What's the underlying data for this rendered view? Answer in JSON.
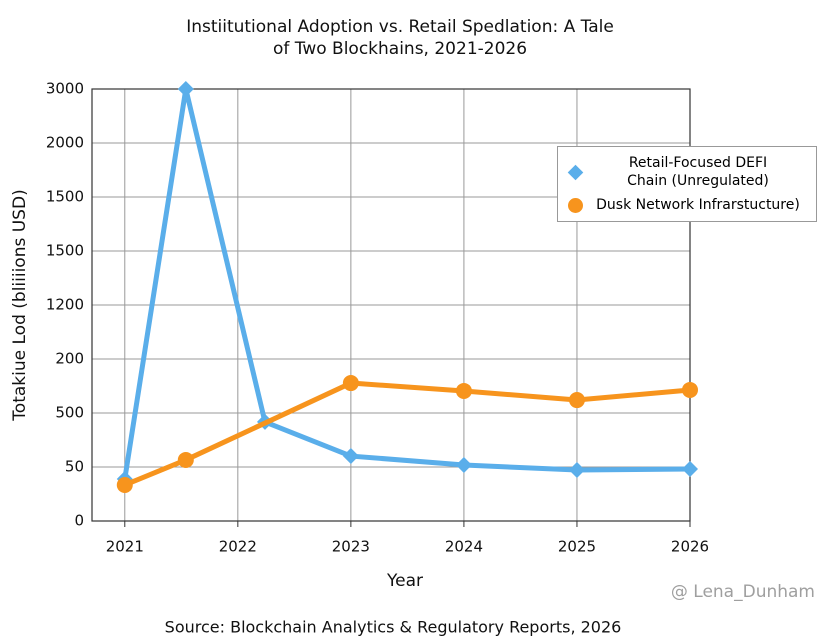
{
  "chart_data": {
    "type": "line",
    "title": [
      "Instiitutional Adoption vs. Retail Spedlation: A Tale",
      "of Two Blockhains, 2021-2026"
    ],
    "x_label": "Year",
    "y_label": "Totakiue Lod  (bliiiions USD)",
    "source": "Source: Blockchain Analytics & Regulatory Reports, 2026",
    "watermark": "@ Lena_Dunham",
    "xlim": [
      2020.71,
      2026
    ],
    "xticks": [
      2021,
      2022,
      2023,
      2024,
      2025,
      2026
    ],
    "ylim": [
      0,
      3000
    ],
    "yticks": [
      0,
      {
        "value": 375,
        "label": "50"
      },
      {
        "value": 750,
        "label": "500"
      },
      {
        "value": 1125,
        "label": "200"
      },
      {
        "value": 1500,
        "label": "1200"
      },
      {
        "value": 1875,
        "label": "1500"
      },
      {
        "value": 2250,
        "label": "1500"
      },
      {
        "value": 2625,
        "label": "2000"
      },
      3000
    ],
    "grid": true,
    "legend": "upper right",
    "series": [
      {
        "name": "Retail-Focused DEFI Chain (Unregulated)",
        "color": "#5aaeea",
        "marker": "diamond",
        "x": [
          2021,
          2021.54,
          2022.24,
          2023,
          2024,
          2025,
          2026
        ],
        "values": [
          292,
          3000,
          688,
          451,
          389,
          354,
          361
        ]
      },
      {
        "name": "Dusk Network Infrarstucture)",
        "color": "#f7941d",
        "marker": "circle",
        "x": [
          2021,
          2021.54,
          2023,
          2024,
          2025,
          2026
        ],
        "values": [
          250,
          424,
          958,
          903,
          840,
          910
        ]
      }
    ]
  }
}
